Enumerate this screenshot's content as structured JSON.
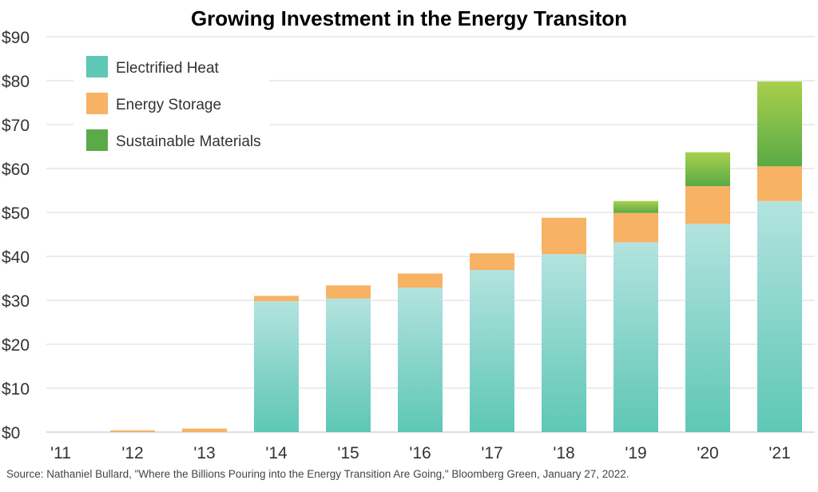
{
  "chart_data": {
    "type": "bar",
    "stacked": true,
    "title": "Growing Investment in the Energy Transiton",
    "categories": [
      "'11",
      "'12",
      "'13",
      "'14",
      "'15",
      "'16",
      "'17",
      "'18",
      "'19",
      "'20",
      "'21"
    ],
    "series": [
      {
        "name": "Electrified Heat",
        "color": "#5ec7b5",
        "values": [
          0,
          0,
          0,
          29.8,
          30.4,
          32.9,
          36.9,
          40.5,
          43.2,
          47.4,
          52.6
        ]
      },
      {
        "name": "Energy Storage",
        "color": "#f7b264",
        "values": [
          0,
          0.4,
          0.8,
          1.2,
          3.0,
          3.2,
          3.8,
          8.3,
          6.7,
          8.6,
          7.9
        ]
      },
      {
        "name": "Sustainable Materials",
        "color": "#5aaa47",
        "values": [
          0,
          0,
          0,
          0,
          0,
          0,
          0,
          0,
          2.7,
          7.7,
          19.3
        ]
      }
    ],
    "ylim": [
      0,
      90
    ],
    "yticks": [
      0,
      10,
      20,
      30,
      40,
      50,
      60,
      70,
      80,
      90
    ],
    "ytick_labels": [
      "$0",
      "$10",
      "$20",
      "$30",
      "$40",
      "$50",
      "$60",
      "$70",
      "$80",
      "$90"
    ],
    "grid": true,
    "legend_position": "top-left",
    "source": "Source: Nathaniel Bullard, \"Where the Billions Pouring into the Energy Transition Are Going,\" Bloomberg Green, January 27, 2022."
  }
}
